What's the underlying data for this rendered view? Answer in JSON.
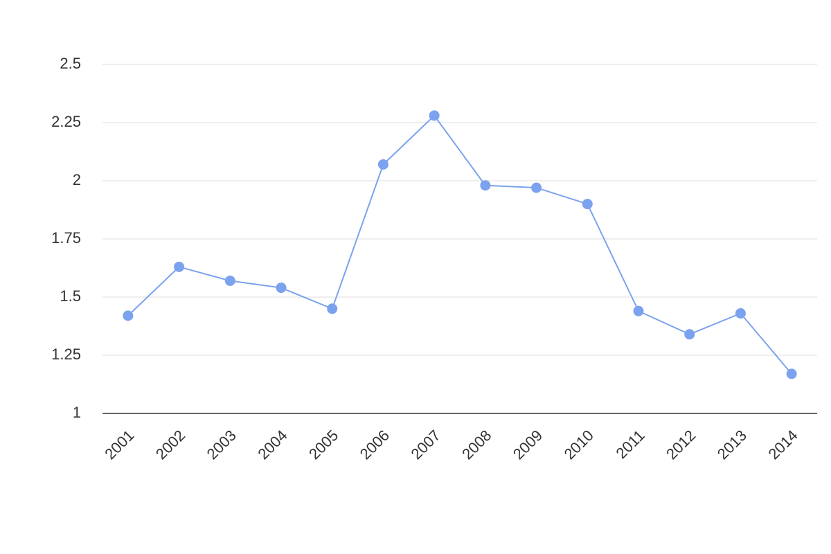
{
  "chart_data": {
    "type": "line",
    "categories": [
      "2001",
      "2002",
      "2003",
      "2004",
      "2005",
      "2006",
      "2007",
      "2008",
      "2009",
      "2010",
      "2011",
      "2012",
      "2013",
      "2014"
    ],
    "values": [
      1.42,
      1.63,
      1.57,
      1.54,
      1.45,
      2.07,
      2.28,
      1.98,
      1.97,
      1.9,
      1.44,
      1.34,
      1.43,
      1.17
    ],
    "color": "#7aa2ee",
    "ylim": [
      1,
      2.5
    ],
    "yticks": [
      1,
      1.25,
      1.5,
      1.75,
      2,
      2.25,
      2.5
    ],
    "grid": true
  }
}
